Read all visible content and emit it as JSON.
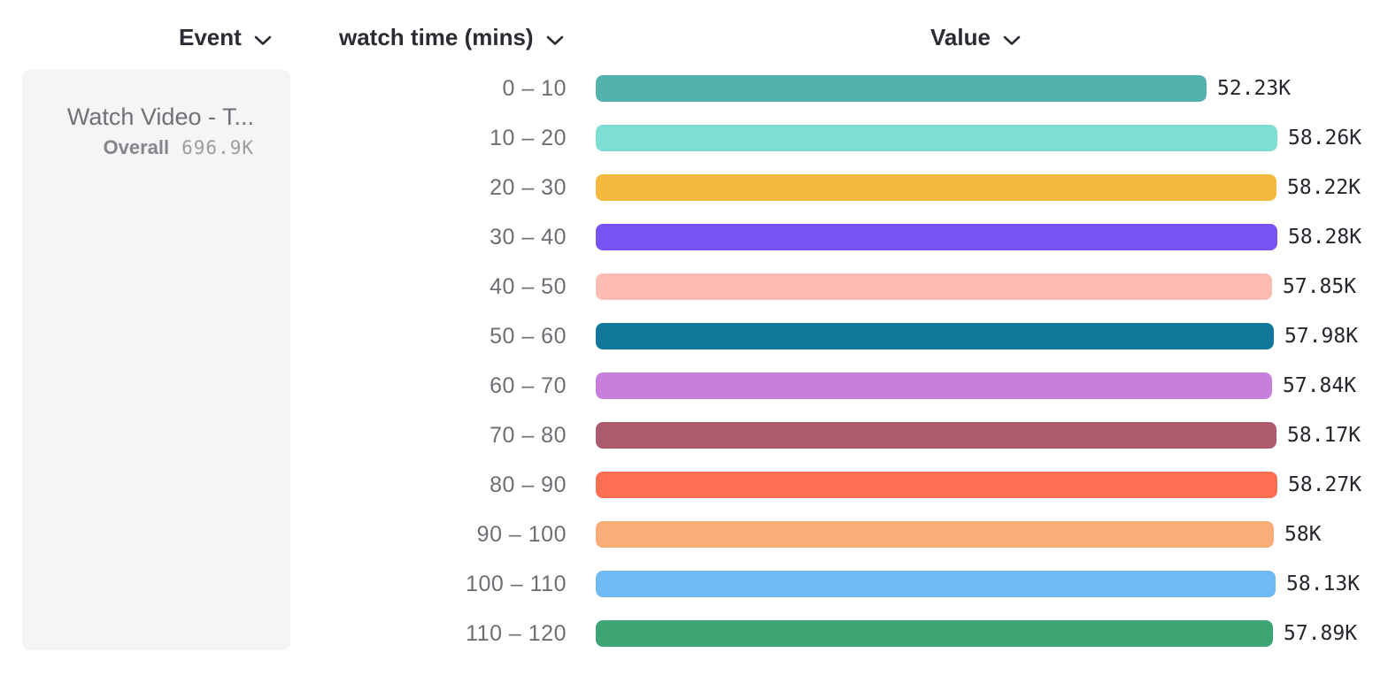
{
  "header": {
    "event_label": "Event",
    "breakdown_label": "watch time (mins)",
    "value_label": "Value"
  },
  "event_card": {
    "title": "Watch Video - T...",
    "overall_label": "Overall",
    "overall_value": "696.9K"
  },
  "icons": {
    "chevron": "chevron-down-icon"
  },
  "colors": {
    "page_bg": "#ffffff",
    "card_bg": "#f5f5f6",
    "header_text": "#2b2b33",
    "category_text": "#6e6e76",
    "value_text": "#26262e",
    "card_title_text": "#717078",
    "overall_label_text": "#85858d",
    "overall_value_text": "#9b9ba1"
  },
  "chart_data": {
    "type": "bar",
    "orientation": "horizontal",
    "title": "",
    "xlabel": "Value",
    "ylabel": "watch time (mins)",
    "xlim": [
      0,
      58280
    ],
    "grid": false,
    "legend_position": "left-card",
    "categories": [
      "0 – 10",
      "10 – 20",
      "20 – 30",
      "30 – 40",
      "40 – 50",
      "50 – 60",
      "60 – 70",
      "70 – 80",
      "80 – 90",
      "90 – 100",
      "100 – 110",
      "110 – 120"
    ],
    "values": [
      52230,
      58260,
      58220,
      58280,
      57850,
      57980,
      57840,
      58170,
      58270,
      58000,
      58130,
      57890
    ],
    "value_labels": [
      "52.23K",
      "58.26K",
      "58.22K",
      "58.28K",
      "57.85K",
      "57.98K",
      "57.84K",
      "58.17K",
      "58.27K",
      "58K",
      "58.13K",
      "57.89K"
    ],
    "bar_colors": [
      "#55B1AB",
      "#7EDED3",
      "#F5B93D",
      "#7952F4",
      "#FDBCB2",
      "#10789B",
      "#C77FDB",
      "#AC5A6D",
      "#FD7053",
      "#FAAC79",
      "#6FBAF3",
      "#3DA574"
    ]
  }
}
